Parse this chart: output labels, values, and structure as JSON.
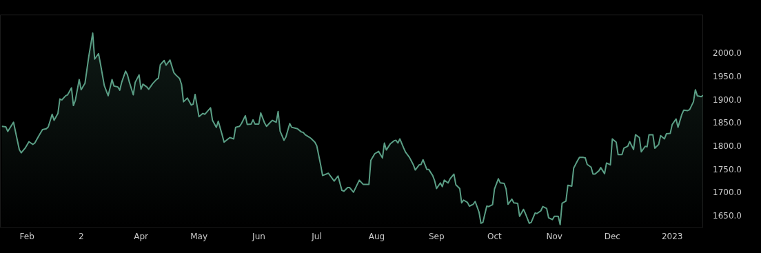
{
  "chart_data": {
    "type": "area",
    "grid": false,
    "legend": false,
    "marker": "none",
    "xlim": [
      "2022-01-18",
      "2023-01-17"
    ],
    "xticks": [
      {
        "value": "2022-02-01",
        "label": "Feb"
      },
      {
        "value": "2022-03-01",
        "label": "2"
      },
      {
        "value": "2022-04-01",
        "label": "Apr"
      },
      {
        "value": "2022-05-01",
        "label": "May"
      },
      {
        "value": "2022-06-01",
        "label": "Jun"
      },
      {
        "value": "2022-07-01",
        "label": "Jul"
      },
      {
        "value": "2022-08-01",
        "label": "Aug"
      },
      {
        "value": "2022-09-01",
        "label": "Sep"
      },
      {
        "value": "2022-10-01",
        "label": "Oct"
      },
      {
        "value": "2022-11-01",
        "label": "Nov"
      },
      {
        "value": "2022-12-01",
        "label": "Dec"
      },
      {
        "value": "2023-01-01",
        "label": "2023"
      }
    ],
    "ylim": [
      1625,
      2085
    ],
    "yticks": [
      {
        "value": 1650,
        "label": "1650.0"
      },
      {
        "value": 1700,
        "label": "1700.0"
      },
      {
        "value": 1750,
        "label": "1750.0"
      },
      {
        "value": 1800,
        "label": "1800.0"
      },
      {
        "value": 1850,
        "label": "1850.0"
      },
      {
        "value": 1900,
        "label": "1900.0"
      },
      {
        "value": 1950,
        "label": "1950.0"
      },
      {
        "value": 2000,
        "label": "2000.0"
      }
    ],
    "x": [
      "2022-01-19",
      "2022-01-21",
      "2022-01-22",
      "2022-01-25",
      "2022-01-26",
      "2022-01-28",
      "2022-01-29",
      "2022-01-31",
      "2022-02-02",
      "2022-02-04",
      "2022-02-05",
      "2022-02-07",
      "2022-02-09",
      "2022-02-11",
      "2022-02-12",
      "2022-02-14",
      "2022-02-15",
      "2022-02-17",
      "2022-02-18",
      "2022-02-19",
      "2022-02-21",
      "2022-02-22",
      "2022-02-24",
      "2022-02-25",
      "2022-02-26",
      "2022-02-28",
      "2022-03-01",
      "2022-03-03",
      "2022-03-05",
      "2022-03-07",
      "2022-03-08",
      "2022-03-10",
      "2022-03-11",
      "2022-03-13",
      "2022-03-15",
      "2022-03-17",
      "2022-03-18",
      "2022-03-20",
      "2022-03-21",
      "2022-03-22",
      "2022-03-24",
      "2022-03-25",
      "2022-03-26",
      "2022-03-28",
      "2022-03-29",
      "2022-03-31",
      "2022-04-01",
      "2022-04-02",
      "2022-04-04",
      "2022-04-05",
      "2022-04-07",
      "2022-04-09",
      "2022-04-10",
      "2022-04-11",
      "2022-04-13",
      "2022-04-14",
      "2022-04-16",
      "2022-04-18",
      "2022-04-19",
      "2022-04-21",
      "2022-04-22",
      "2022-04-23",
      "2022-04-25",
      "2022-04-27",
      "2022-04-28",
      "2022-04-29",
      "2022-05-01",
      "2022-05-03",
      "2022-05-04",
      "2022-05-07",
      "2022-05-08",
      "2022-05-10",
      "2022-05-11",
      "2022-05-13",
      "2022-05-14",
      "2022-05-17",
      "2022-05-19",
      "2022-05-20",
      "2022-05-22",
      "2022-05-23",
      "2022-05-25",
      "2022-05-26",
      "2022-05-28",
      "2022-05-29",
      "2022-05-30",
      "2022-06-01",
      "2022-06-02",
      "2022-06-04",
      "2022-06-05",
      "2022-06-07",
      "2022-06-08",
      "2022-06-10",
      "2022-06-11",
      "2022-06-12",
      "2022-06-14",
      "2022-06-15",
      "2022-06-17",
      "2022-06-18",
      "2022-06-20",
      "2022-06-21",
      "2022-06-23",
      "2022-06-24",
      "2022-06-25",
      "2022-06-27",
      "2022-06-28",
      "2022-06-30",
      "2022-07-01",
      "2022-07-03",
      "2022-07-04",
      "2022-07-07",
      "2022-07-10",
      "2022-07-12",
      "2022-07-14",
      "2022-07-15",
      "2022-07-17",
      "2022-07-18",
      "2022-07-20",
      "2022-07-23",
      "2022-07-25",
      "2022-07-28",
      "2022-07-29",
      "2022-07-31",
      "2022-08-02",
      "2022-08-04",
      "2022-08-05",
      "2022-08-06",
      "2022-08-08",
      "2022-08-10",
      "2022-08-11",
      "2022-08-12",
      "2022-08-13",
      "2022-08-15",
      "2022-08-16",
      "2022-08-18",
      "2022-08-19",
      "2022-08-20",
      "2022-08-21",
      "2022-08-23",
      "2022-08-24",
      "2022-08-25",
      "2022-08-27",
      "2022-08-28",
      "2022-08-30",
      "2022-08-31",
      "2022-09-01",
      "2022-09-03",
      "2022-09-04",
      "2022-09-05",
      "2022-09-07",
      "2022-09-08",
      "2022-09-10",
      "2022-09-11",
      "2022-09-13",
      "2022-09-14",
      "2022-09-15",
      "2022-09-17",
      "2022-09-18",
      "2022-09-20",
      "2022-09-21",
      "2022-09-23",
      "2022-09-24",
      "2022-09-25",
      "2022-09-27",
      "2022-09-28",
      "2022-09-30",
      "2022-10-01",
      "2022-10-03",
      "2022-10-04",
      "2022-10-06",
      "2022-10-07",
      "2022-10-08",
      "2022-10-10",
      "2022-10-11",
      "2022-10-13",
      "2022-10-14",
      "2022-10-16",
      "2022-10-17",
      "2022-10-19",
      "2022-10-20",
      "2022-10-22",
      "2022-10-23",
      "2022-10-25",
      "2022-10-26",
      "2022-10-28",
      "2022-10-29",
      "2022-10-31",
      "2022-11-01",
      "2022-11-03",
      "2022-11-04",
      "2022-11-05",
      "2022-11-07",
      "2022-11-08",
      "2022-11-10",
      "2022-11-11",
      "2022-11-13",
      "2022-11-14",
      "2022-11-16",
      "2022-11-17",
      "2022-11-18",
      "2022-11-20",
      "2022-11-21",
      "2022-11-22",
      "2022-11-24",
      "2022-11-25",
      "2022-11-27",
      "2022-11-28",
      "2022-11-30",
      "2022-12-01",
      "2022-12-03",
      "2022-12-04",
      "2022-12-06",
      "2022-12-07",
      "2022-12-09",
      "2022-12-10",
      "2022-12-12",
      "2022-12-13",
      "2022-12-15",
      "2022-12-16",
      "2022-12-18",
      "2022-12-19",
      "2022-12-20",
      "2022-12-22",
      "2022-12-23",
      "2022-12-25",
      "2022-12-26",
      "2022-12-28",
      "2022-12-29",
      "2022-12-31",
      "2023-01-01",
      "2023-01-03",
      "2023-01-04",
      "2023-01-06",
      "2023-01-07",
      "2023-01-09",
      "2023-01-10",
      "2023-01-12",
      "2023-01-13",
      "2023-01-14",
      "2023-01-16",
      "2023-01-17"
    ],
    "series": [
      {
        "color": "#5a9e85",
        "values": [
          1844,
          1843,
          1833,
          1853,
          1833,
          1794,
          1787,
          1797,
          1811,
          1805,
          1808,
          1823,
          1837,
          1839,
          1843,
          1870,
          1857,
          1872,
          1903,
          1901,
          1910,
          1912,
          1927,
          1889,
          1900,
          1945,
          1923,
          1937,
          1996,
          2045,
          1989,
          2001,
          1979,
          1932,
          1910,
          1945,
          1931,
          1929,
          1922,
          1939,
          1963,
          1955,
          1939,
          1912,
          1939,
          1955,
          1924,
          1935,
          1929,
          1924,
          1936,
          1945,
          1948,
          1977,
          1986,
          1976,
          1987,
          1960,
          1955,
          1947,
          1934,
          1897,
          1905,
          1890,
          1892,
          1913,
          1865,
          1872,
          1870,
          1884,
          1857,
          1842,
          1855,
          1826,
          1810,
          1820,
          1817,
          1842,
          1844,
          1850,
          1867,
          1848,
          1849,
          1858,
          1849,
          1849,
          1873,
          1851,
          1844,
          1853,
          1857,
          1853,
          1876,
          1834,
          1814,
          1821,
          1850,
          1842,
          1840,
          1839,
          1832,
          1831,
          1826,
          1821,
          1818,
          1810,
          1802,
          1761,
          1738,
          1743,
          1726,
          1737,
          1706,
          1704,
          1712,
          1712,
          1702,
          1728,
          1719,
          1719,
          1771,
          1785,
          1790,
          1776,
          1808,
          1793,
          1806,
          1813,
          1814,
          1808,
          1817,
          1797,
          1788,
          1777,
          1769,
          1761,
          1750,
          1761,
          1762,
          1772,
          1751,
          1751,
          1738,
          1727,
          1710,
          1722,
          1714,
          1728,
          1722,
          1731,
          1741,
          1718,
          1710,
          1679,
          1685,
          1680,
          1672,
          1676,
          1682,
          1659,
          1635,
          1637,
          1672,
          1671,
          1675,
          1709,
          1731,
          1722,
          1721,
          1709,
          1676,
          1687,
          1679,
          1678,
          1650,
          1665,
          1656,
          1635,
          1637,
          1657,
          1656,
          1662,
          1671,
          1667,
          1647,
          1643,
          1650,
          1650,
          1632,
          1678,
          1683,
          1717,
          1715,
          1754,
          1770,
          1777,
          1777,
          1776,
          1762,
          1756,
          1741,
          1741,
          1748,
          1755,
          1742,
          1765,
          1761,
          1817,
          1810,
          1783,
          1783,
          1797,
          1801,
          1811,
          1794,
          1826,
          1820,
          1789,
          1801,
          1800,
          1826,
          1826,
          1797,
          1805,
          1824,
          1817,
          1828,
          1829,
          1848,
          1860,
          1842,
          1870,
          1879,
          1878,
          1880,
          1897,
          1923,
          1910,
          1908,
          1911
        ]
      }
    ]
  }
}
